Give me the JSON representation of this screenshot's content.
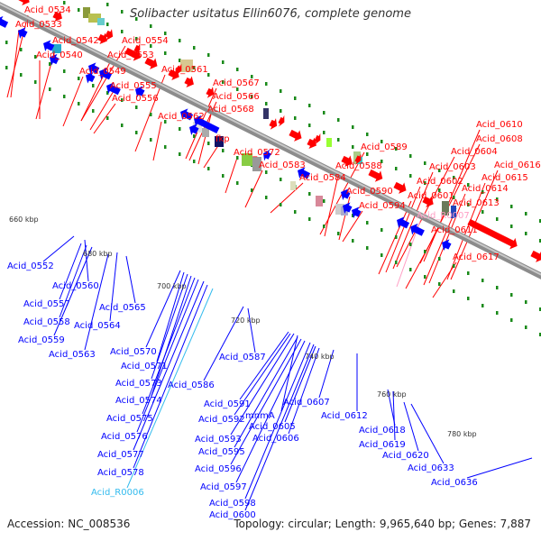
{
  "title": "Solibacter usitatus Ellin6076, complete genome",
  "footer": {
    "accession": "Accession: NC_008536",
    "topology": "Topology: circular; Length: 9,965,640 bp; Genes: 7,887"
  },
  "colors": {
    "forward": "#ff0000",
    "reverse": "#0000ff",
    "rna": "#ff9ec4",
    "rna_reverse": "#33bbee",
    "backbone": "#a0a0a0",
    "tick": "#1a8a1a"
  },
  "ruler_ticks": [
    "660 kbp",
    "680 kbp",
    "700 kbp",
    "720 kbp",
    "740 kbp",
    "760 kbp",
    "780 kbp"
  ],
  "forward_genes": [
    "Acid_0534",
    "Acid_0533",
    "Acid_0542",
    "Acid_0540",
    "Acid_0554",
    "Acid_0553",
    "Acid_0549",
    "Acid_0555",
    "Acid_0556",
    "Acid_0561",
    "Acid_0567",
    "Acid_0566",
    "Acid_0568",
    "Acid_0562",
    "fkp",
    "Acid_0572",
    "Acid_0583",
    "Acid_0584",
    "Acid_0589",
    "Acid_0588",
    "Acid_0590",
    "Acid_0594",
    "Acid_0610",
    "Acid_0608",
    "Acid_0604",
    "Acid_0603",
    "Acid_0602",
    "Acid_0601",
    "Acid_0616",
    "Acid_0615",
    "Acid_0614",
    "Acid_0613",
    "Acid_R0007",
    "Acid_0611",
    "Acid_0617"
  ],
  "reverse_genes": [
    "Acid_0552",
    "Acid_0560",
    "Acid_0557",
    "Acid_0558",
    "Acid_0559",
    "Acid_0564",
    "Acid_0565",
    "Acid_0563",
    "Acid_0570",
    "Acid_0571",
    "Acid_0573",
    "Acid_0574",
    "Acid_0575",
    "Acid_0576",
    "Acid_0577",
    "Acid_0578",
    "Acid_R0006",
    "Acid_0587",
    "Acid_0586",
    "Acid_0591",
    "Acid_0592",
    "mnmA",
    "Acid_0593",
    "Acid_0595",
    "Acid_0596",
    "Acid_0597",
    "Acid_0598",
    "Acid_0600",
    "Acid_0607",
    "Acid_0605",
    "Acid_0606",
    "Acid_0612",
    "Acid_0618",
    "Acid_0619",
    "Acid_0620",
    "Acid_0633",
    "Acid_0636"
  ]
}
